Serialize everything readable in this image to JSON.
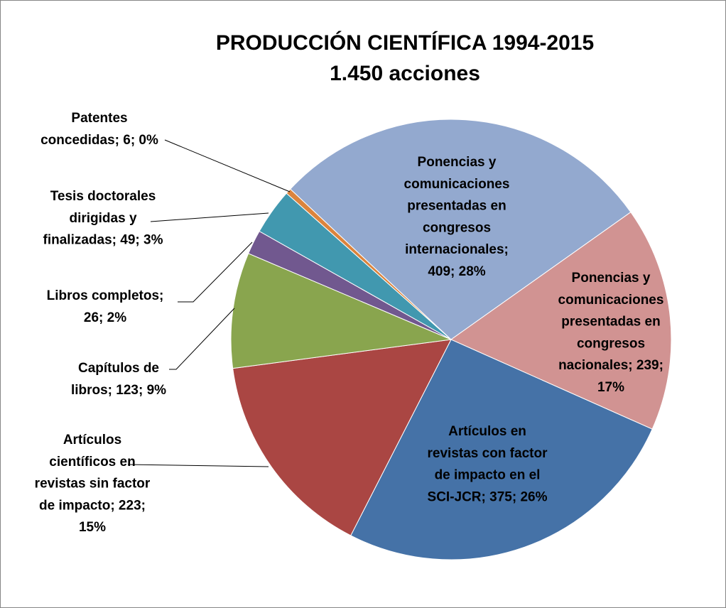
{
  "chart_data": {
    "type": "pie",
    "title": "PRODUCCIÓN CIENTÍFICA 1994-2015",
    "subtitle": "1.450 acciones",
    "slices": [
      {
        "category": "Artículos en revistas con factor de impacto en el SCI-JCR",
        "value": 375,
        "percent": "26%",
        "color": "#4572A7",
        "label_lines": [
          "Artículos en",
          "revistas con factor",
          "de impacto en el",
          "SCI-JCR; 375; 26%"
        ]
      },
      {
        "category": "Artículos científicos en revistas sin factor de impacto",
        "value": 223,
        "percent": "15%",
        "color": "#AA4643",
        "label_lines": [
          "Artículos",
          "científicos en",
          "revistas sin factor",
          "de impacto; 223;",
          "15%"
        ]
      },
      {
        "category": "Capítulos de libros",
        "value": 123,
        "percent": "9%",
        "color": "#89A54E",
        "label_lines": [
          "Capítulos de",
          "libros; 123; 9%"
        ]
      },
      {
        "category": "Libros completos",
        "value": 26,
        "percent": "2%",
        "color": "#71588F",
        "label_lines": [
          "Libros completos;",
          "26; 2%"
        ]
      },
      {
        "category": "Tesis doctorales dirigidas y finalizadas",
        "value": 49,
        "percent": "3%",
        "color": "#4198AF",
        "label_lines": [
          "Tesis doctorales",
          "dirigidas y",
          "finalizadas; 49; 3%"
        ]
      },
      {
        "category": "Patentes concedidas",
        "value": 6,
        "percent": "0%",
        "color": "#DB843D",
        "label_lines": [
          "Patentes",
          "concedidas; 6; 0%"
        ]
      },
      {
        "category": "Ponencias y comunicaciones presentadas en congresos internacionales",
        "value": 409,
        "percent": "28%",
        "color": "#93A9CF",
        "label_lines": [
          "Ponencias y",
          "comunicaciones",
          "presentadas en",
          "congresos",
          "internacionales;",
          "409; 28%"
        ]
      },
      {
        "category": "Ponencias y comunicaciones presentadas en congresos nacionales",
        "value": 239,
        "percent": "17%",
        "color": "#D19392",
        "label_lines": [
          "Ponencias y",
          "comunicaciones",
          "presentadas en",
          "congresos",
          "nacionales; 239;",
          "17%"
        ]
      }
    ],
    "legend": "none"
  }
}
